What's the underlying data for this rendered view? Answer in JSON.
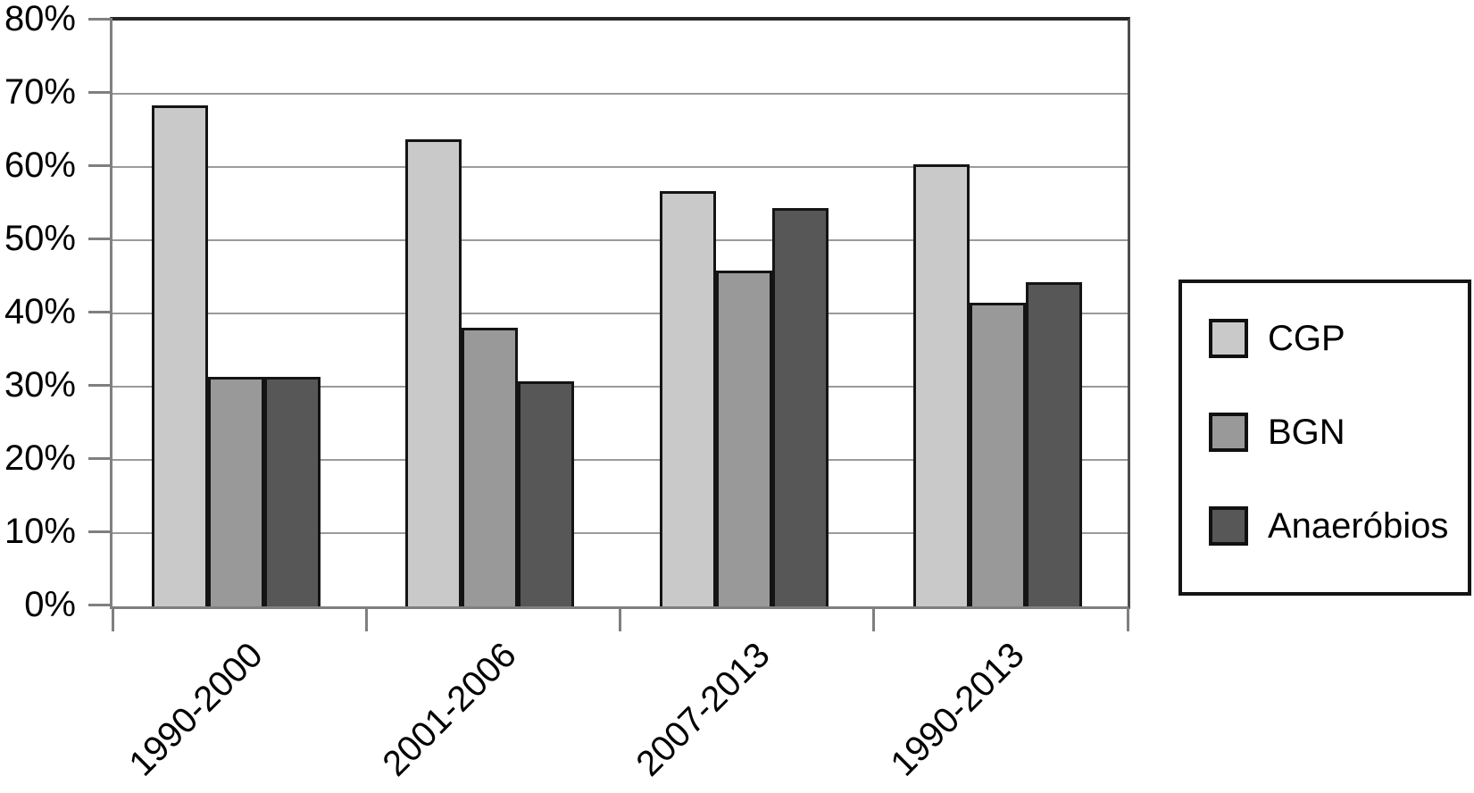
{
  "chart_data": {
    "type": "bar",
    "title": "",
    "categories": [
      "1990-2000",
      "2001-2006",
      "2007-2013",
      "1990-2013"
    ],
    "series": [
      {
        "name": "CGP",
        "color": "#c9c9c9",
        "values": [
          68.4,
          63.8,
          56.7,
          60.4
        ]
      },
      {
        "name": "BGN",
        "color": "#999999",
        "values": [
          31.4,
          38.0,
          45.8,
          41.5
        ]
      },
      {
        "name": "Anaeróbios",
        "color": "#575757",
        "values": [
          31.4,
          30.7,
          54.4,
          44.3
        ]
      }
    ],
    "y_axis": {
      "min": 0,
      "max": 80,
      "step": 10,
      "tick_labels": [
        "0%",
        "10%",
        "20%",
        "30%",
        "40%",
        "50%",
        "60%",
        "70%",
        "80%"
      ],
      "unit": "%"
    },
    "x_axis": {
      "label_rotation_deg": -45
    },
    "grid": true,
    "legend_position": "right",
    "colors": {
      "gridline": "#9a9a9a",
      "axis": "#7f7f7f",
      "plot_top_border": "#262626",
      "bar_border": "#141414",
      "background": "#ffffff",
      "text": "#000000"
    }
  }
}
